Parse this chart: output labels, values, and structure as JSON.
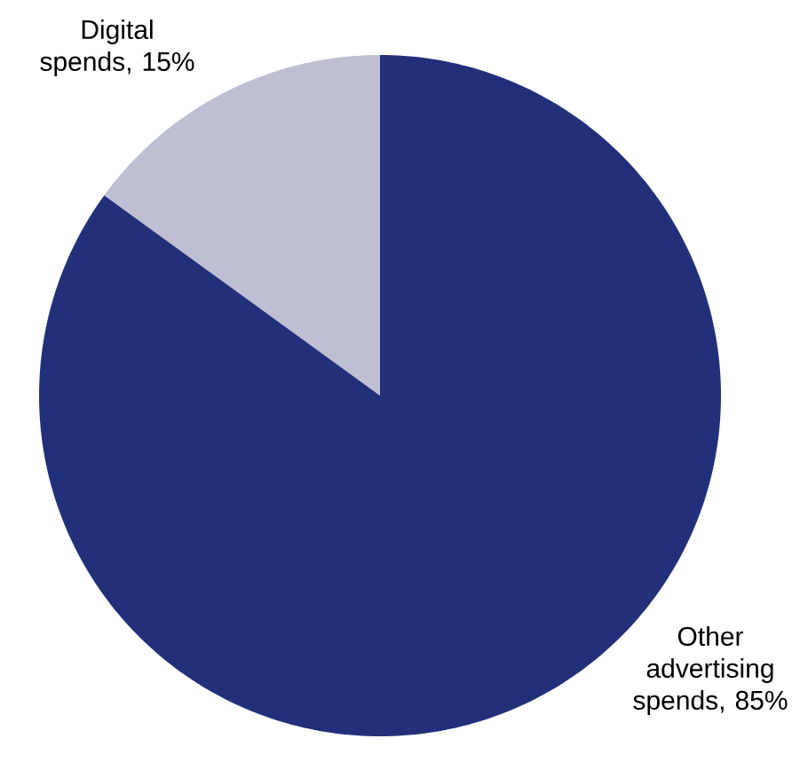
{
  "chart_data": {
    "type": "pie",
    "categories": [
      "Digital spends, 15%",
      "Other advertising spends, 85%"
    ],
    "values": [
      15,
      85
    ],
    "colors": [
      "#bfbfd3",
      "#22307a"
    ]
  }
}
